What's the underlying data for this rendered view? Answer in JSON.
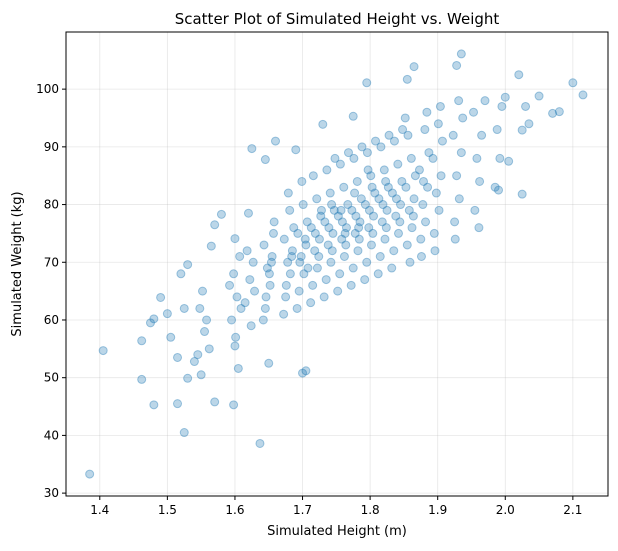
{
  "chart_data": {
    "type": "scatter",
    "title": "Scatter Plot of Simulated Height vs. Weight",
    "xlabel": "Simulated Height (m)",
    "ylabel": "Simulated Weight (kg)",
    "xlim": [
      1.35,
      2.152
    ],
    "ylim": [
      29.5,
      109.9
    ],
    "xticks": [
      1.4,
      1.5,
      1.6,
      1.7,
      1.8,
      1.9,
      2.0,
      2.1
    ],
    "xtick_labels": [
      "1.4",
      "1.5",
      "1.6",
      "1.7",
      "1.8",
      "1.9",
      "2.0",
      "2.1"
    ],
    "yticks": [
      30,
      40,
      50,
      60,
      70,
      80,
      90,
      100
    ],
    "ytick_labels": [
      "30",
      "40",
      "50",
      "60",
      "70",
      "80",
      "90",
      "100"
    ],
    "grid": true,
    "marker_color": "#1f77b4",
    "marker_alpha": 0.3,
    "points": [
      [
        1.385,
        33.3
      ],
      [
        1.405,
        54.7
      ],
      [
        1.637,
        38.6
      ],
      [
        1.525,
        40.5
      ],
      [
        1.48,
        45.3
      ],
      [
        1.515,
        45.5
      ],
      [
        1.598,
        45.3
      ],
      [
        1.57,
        45.8
      ],
      [
        1.462,
        49.7
      ],
      [
        1.462,
        56.4
      ],
      [
        1.935,
        106.1
      ],
      [
        1.928,
        104.1
      ],
      [
        1.865,
        103.9
      ],
      [
        1.855,
        101.7
      ],
      [
        1.795,
        101.1
      ],
      [
        2.02,
        102.5
      ],
      [
        2.1,
        101.1
      ],
      [
        2.115,
        99.0
      ],
      [
        2.08,
        96.1
      ],
      [
        2.07,
        95.8
      ],
      [
        2.05,
        98.8
      ],
      [
        2.03,
        97.0
      ],
      [
        2.025,
        92.9
      ],
      [
        2.035,
        94.0
      ],
      [
        2.025,
        81.8
      ],
      [
        1.99,
        82.5
      ],
      [
        1.49,
        63.9
      ],
      [
        1.5,
        61.1
      ],
      [
        1.52,
        68.0
      ],
      [
        1.53,
        69.6
      ],
      [
        1.565,
        72.8
      ],
      [
        1.57,
        76.5
      ],
      [
        1.58,
        78.3
      ],
      [
        1.6,
        74.1
      ],
      [
        1.62,
        78.5
      ],
      [
        1.625,
        89.7
      ],
      [
        1.645,
        87.8
      ],
      [
        1.66,
        91.0
      ],
      [
        1.69,
        89.5
      ],
      [
        1.73,
        93.9
      ],
      [
        1.775,
        95.3
      ],
      [
        1.705,
        51.2
      ],
      [
        1.7,
        50.8
      ],
      [
        1.65,
        52.5
      ],
      [
        1.605,
        51.6
      ],
      [
        1.6,
        55.5
      ],
      [
        1.54,
        52.8
      ],
      [
        1.55,
        50.5
      ],
      [
        1.53,
        49.9
      ],
      [
        1.48,
        60.2
      ],
      [
        1.475,
        59.5
      ],
      [
        1.505,
        57.0
      ],
      [
        1.515,
        53.5
      ],
      [
        1.525,
        62.0
      ],
      [
        1.545,
        54.0
      ],
      [
        1.555,
        58.0
      ],
      [
        1.548,
        62.0
      ],
      [
        1.552,
        65.0
      ],
      [
        1.558,
        60.0
      ],
      [
        1.562,
        55.0
      ],
      [
        1.595,
        60.0
      ],
      [
        1.603,
        64.0
      ],
      [
        1.598,
        68.0
      ],
      [
        1.607,
        71.0
      ],
      [
        1.592,
        66.0
      ],
      [
        1.601,
        57.0
      ],
      [
        1.609,
        62.0
      ],
      [
        1.615,
        63.0
      ],
      [
        1.622,
        67.0
      ],
      [
        1.627,
        70.0
      ],
      [
        1.618,
        72.0
      ],
      [
        1.624,
        59.0
      ],
      [
        1.629,
        65.0
      ],
      [
        1.645,
        62.0
      ],
      [
        1.652,
        66.0
      ],
      [
        1.648,
        69.0
      ],
      [
        1.655,
        71.0
      ],
      [
        1.643,
        73.0
      ],
      [
        1.657,
        75.0
      ],
      [
        1.651,
        68.0
      ],
      [
        1.646,
        64.0
      ],
      [
        1.654,
        70.0
      ],
      [
        1.658,
        77.0
      ],
      [
        1.642,
        60.0
      ],
      [
        1.675,
        64.0
      ],
      [
        1.682,
        68.0
      ],
      [
        1.678,
        70.0
      ],
      [
        1.685,
        72.0
      ],
      [
        1.673,
        74.0
      ],
      [
        1.687,
        76.0
      ],
      [
        1.681,
        79.0
      ],
      [
        1.676,
        66.0
      ],
      [
        1.684,
        71.0
      ],
      [
        1.679,
        82.0
      ],
      [
        1.672,
        61.0
      ],
      [
        1.695,
        65.0
      ],
      [
        1.702,
        68.0
      ],
      [
        1.698,
        71.0
      ],
      [
        1.705,
        73.0
      ],
      [
        1.693,
        75.0
      ],
      [
        1.707,
        77.0
      ],
      [
        1.701,
        80.0
      ],
      [
        1.696,
        70.0
      ],
      [
        1.704,
        74.0
      ],
      [
        1.699,
        84.0
      ],
      [
        1.692,
        62.0
      ],
      [
        1.708,
        69.0
      ],
      [
        1.715,
        66.0
      ],
      [
        1.722,
        69.0
      ],
      [
        1.718,
        72.0
      ],
      [
        1.725,
        74.0
      ],
      [
        1.713,
        76.0
      ],
      [
        1.727,
        78.0
      ],
      [
        1.721,
        81.0
      ],
      [
        1.716,
        85.0
      ],
      [
        1.724,
        71.0
      ],
      [
        1.719,
        75.0
      ],
      [
        1.712,
        63.0
      ],
      [
        1.728,
        79.0
      ],
      [
        1.735,
        67.0
      ],
      [
        1.742,
        70.0
      ],
      [
        1.738,
        73.0
      ],
      [
        1.745,
        75.0
      ],
      [
        1.733,
        77.0
      ],
      [
        1.747,
        79.0
      ],
      [
        1.741,
        82.0
      ],
      [
        1.736,
        86.0
      ],
      [
        1.744,
        72.0
      ],
      [
        1.739,
        76.0
      ],
      [
        1.732,
        64.0
      ],
      [
        1.748,
        88.0
      ],
      [
        1.743,
        80.0
      ],
      [
        1.755,
        68.0
      ],
      [
        1.762,
        71.0
      ],
      [
        1.758,
        74.0
      ],
      [
        1.765,
        76.0
      ],
      [
        1.753,
        78.0
      ],
      [
        1.767,
        80.0
      ],
      [
        1.761,
        83.0
      ],
      [
        1.756,
        87.0
      ],
      [
        1.764,
        73.0
      ],
      [
        1.759,
        77.0
      ],
      [
        1.752,
        65.0
      ],
      [
        1.768,
        89.0
      ],
      [
        1.763,
        75.0
      ],
      [
        1.757,
        79.0
      ],
      [
        1.775,
        69.0
      ],
      [
        1.782,
        72.0
      ],
      [
        1.778,
        75.0
      ],
      [
        1.785,
        77.0
      ],
      [
        1.773,
        79.0
      ],
      [
        1.787,
        81.0
      ],
      [
        1.781,
        84.0
      ],
      [
        1.776,
        88.0
      ],
      [
        1.784,
        74.0
      ],
      [
        1.779,
        78.0
      ],
      [
        1.772,
        66.0
      ],
      [
        1.788,
        90.0
      ],
      [
        1.783,
        76.0
      ],
      [
        1.777,
        82.0
      ],
      [
        1.795,
        70.0
      ],
      [
        1.802,
        73.0
      ],
      [
        1.798,
        76.0
      ],
      [
        1.805,
        78.0
      ],
      [
        1.793,
        80.0
      ],
      [
        1.807,
        82.0
      ],
      [
        1.801,
        85.0
      ],
      [
        1.796,
        89.0
      ],
      [
        1.804,
        75.0
      ],
      [
        1.799,
        79.0
      ],
      [
        1.792,
        67.0
      ],
      [
        1.808,
        91.0
      ],
      [
        1.803,
        83.0
      ],
      [
        1.797,
        86.0
      ],
      [
        1.815,
        71.0
      ],
      [
        1.822,
        74.0
      ],
      [
        1.818,
        77.0
      ],
      [
        1.825,
        79.0
      ],
      [
        1.813,
        81.0
      ],
      [
        1.827,
        83.0
      ],
      [
        1.821,
        86.0
      ],
      [
        1.816,
        90.0
      ],
      [
        1.824,
        76.0
      ],
      [
        1.819,
        80.0
      ],
      [
        1.812,
        68.0
      ],
      [
        1.828,
        92.0
      ],
      [
        1.823,
        84.0
      ],
      [
        1.835,
        72.0
      ],
      [
        1.842,
        75.0
      ],
      [
        1.838,
        78.0
      ],
      [
        1.845,
        80.0
      ],
      [
        1.833,
        82.0
      ],
      [
        1.847,
        84.0
      ],
      [
        1.841,
        87.0
      ],
      [
        1.836,
        91.0
      ],
      [
        1.844,
        77.0
      ],
      [
        1.839,
        81.0
      ],
      [
        1.832,
        69.0
      ],
      [
        1.848,
        93.0
      ],
      [
        1.855,
        73.0
      ],
      [
        1.862,
        76.0
      ],
      [
        1.858,
        79.0
      ],
      [
        1.865,
        81.0
      ],
      [
        1.853,
        83.0
      ],
      [
        1.867,
        85.0
      ],
      [
        1.861,
        88.0
      ],
      [
        1.856,
        92.0
      ],
      [
        1.864,
        78.0
      ],
      [
        1.859,
        70.0
      ],
      [
        1.852,
        95.0
      ],
      [
        1.875,
        74.0
      ],
      [
        1.882,
        77.0
      ],
      [
        1.878,
        80.0
      ],
      [
        1.885,
        83.0
      ],
      [
        1.873,
        86.0
      ],
      [
        1.887,
        89.0
      ],
      [
        1.881,
        93.0
      ],
      [
        1.876,
        71.0
      ],
      [
        1.884,
        96.0
      ],
      [
        1.879,
        84.0
      ],
      [
        1.895,
        75.0
      ],
      [
        1.902,
        79.0
      ],
      [
        1.898,
        82.0
      ],
      [
        1.905,
        85.0
      ],
      [
        1.893,
        88.0
      ],
      [
        1.907,
        91.0
      ],
      [
        1.901,
        94.0
      ],
      [
        1.896,
        72.0
      ],
      [
        1.904,
        97.0
      ],
      [
        1.925,
        77.0
      ],
      [
        1.932,
        81.0
      ],
      [
        1.928,
        85.0
      ],
      [
        1.935,
        89.0
      ],
      [
        1.923,
        92.0
      ],
      [
        1.937,
        95.0
      ],
      [
        1.931,
        98.0
      ],
      [
        1.926,
        74.0
      ],
      [
        1.955,
        79.0
      ],
      [
        1.962,
        84.0
      ],
      [
        1.958,
        88.0
      ],
      [
        1.965,
        92.0
      ],
      [
        1.953,
        96.0
      ],
      [
        1.961,
        76.0
      ],
      [
        1.985,
        83.0
      ],
      [
        1.992,
        88.0
      ],
      [
        1.988,
        93.0
      ],
      [
        1.995,
        97.0
      ],
      [
        2.005,
        87.5
      ],
      [
        2.0,
        98.6
      ],
      [
        1.97,
        98.0
      ]
    ]
  }
}
